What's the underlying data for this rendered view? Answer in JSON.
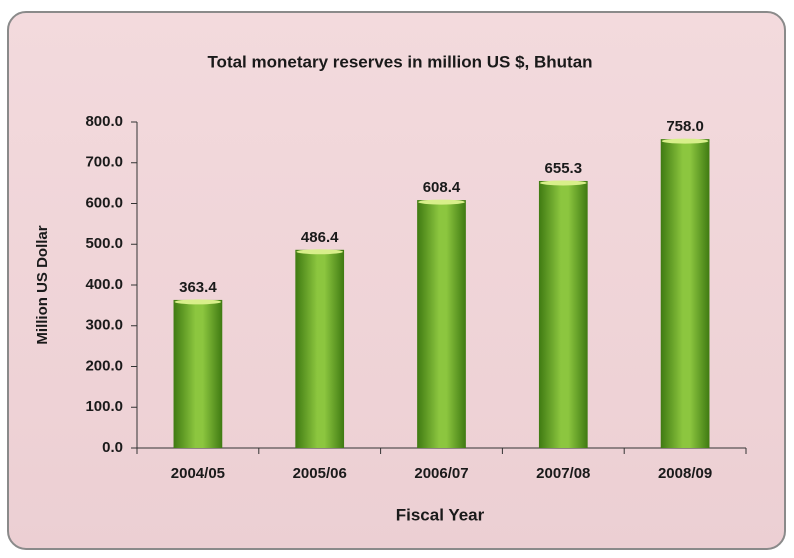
{
  "chart_data": {
    "type": "bar",
    "title": "Total monetary reserves in million US $, Bhutan",
    "xlabel": "Fiscal Year",
    "ylabel": "Million US Dollar",
    "categories": [
      "2004/05",
      "2005/06",
      "2006/07",
      "2007/08",
      "2008/09"
    ],
    "values": [
      363.4,
      486.4,
      608.4,
      655.3,
      758.0
    ],
    "value_labels": [
      "363.4",
      "486.4",
      "608.4",
      "655.3",
      "758.0"
    ],
    "color": "#8cc63f",
    "ylim": [
      0,
      800
    ],
    "yticks": [
      {
        "value": 0,
        "label": "0.0"
      },
      {
        "value": 100,
        "label": "100.0"
      },
      {
        "value": 200,
        "label": "200.0"
      },
      {
        "value": 300,
        "label": "300.0"
      },
      {
        "value": 400,
        "label": "400.0"
      },
      {
        "value": 500,
        "label": "500.0"
      },
      {
        "value": 600,
        "label": "600.0"
      },
      {
        "value": 700,
        "label": "700.0"
      },
      {
        "value": 800,
        "label": "800.0"
      }
    ],
    "grid": false
  }
}
